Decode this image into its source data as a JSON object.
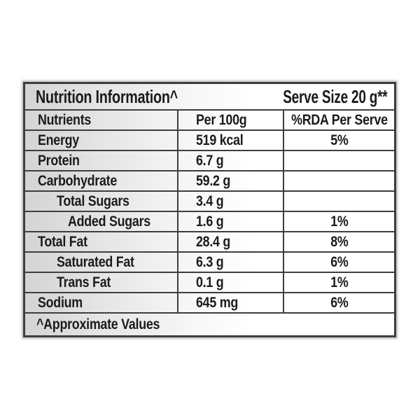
{
  "header": {
    "title": "Nutrition Information^",
    "serve_size": "Serve Size 20 g**"
  },
  "columns": [
    "Nutrients",
    "Per 100g",
    "%RDA Per Serve"
  ],
  "rows": [
    {
      "nutrient": "Energy",
      "per_100g": "519 kcal",
      "rda_per_serve": "5%",
      "indent": 0
    },
    {
      "nutrient": "Protein",
      "per_100g": "6.7 g",
      "rda_per_serve": "",
      "indent": 0
    },
    {
      "nutrient": "Carbohydrate",
      "per_100g": "59.2 g",
      "rda_per_serve": "",
      "indent": 0
    },
    {
      "nutrient": "Total Sugars",
      "per_100g": "3.4 g",
      "rda_per_serve": "",
      "indent": 1
    },
    {
      "nutrient": "Added Sugars",
      "per_100g": "1.6 g",
      "rda_per_serve": "1%",
      "indent": 2
    },
    {
      "nutrient": "Total Fat",
      "per_100g": "28.4 g",
      "rda_per_serve": "8%",
      "indent": 0
    },
    {
      "nutrient": "Saturated Fat",
      "per_100g": "6.3 g",
      "rda_per_serve": "6%",
      "indent": 1
    },
    {
      "nutrient": "Trans Fat",
      "per_100g": "0.1 g",
      "rda_per_serve": "1%",
      "indent": 1
    },
    {
      "nutrient": "Sodium",
      "per_100g": "645 mg",
      "rda_per_serve": "6%",
      "indent": 0
    }
  ],
  "footnote": "^Approximate Values",
  "colors": {
    "border": "#3e3e3e",
    "text": "#1b1b1b",
    "row_gradient_start": "#d4d4d4",
    "row_gradient_end": "#ffffff",
    "page_background": "#ffffff"
  },
  "chart_data": {
    "type": "table",
    "title": "Nutrition Information^",
    "subtitle": "Serve Size 20 g**",
    "columns": [
      "Nutrients",
      "Per 100g",
      "%RDA Per Serve"
    ],
    "rows": [
      [
        "Energy",
        "519 kcal",
        "5%"
      ],
      [
        "Protein",
        "6.7 g",
        ""
      ],
      [
        "Carbohydrate",
        "59.2 g",
        ""
      ],
      [
        "Total Sugars",
        "3.4 g",
        ""
      ],
      [
        "Added Sugars",
        "1.6 g",
        "1%"
      ],
      [
        "Total Fat",
        "28.4 g",
        "8%"
      ],
      [
        "Saturated Fat",
        "6.3 g",
        "6%"
      ],
      [
        "Trans Fat",
        "0.1 g",
        "1%"
      ],
      [
        "Sodium",
        "645 mg",
        "6%"
      ]
    ],
    "annotations": [
      "^Approximate Values"
    ]
  }
}
